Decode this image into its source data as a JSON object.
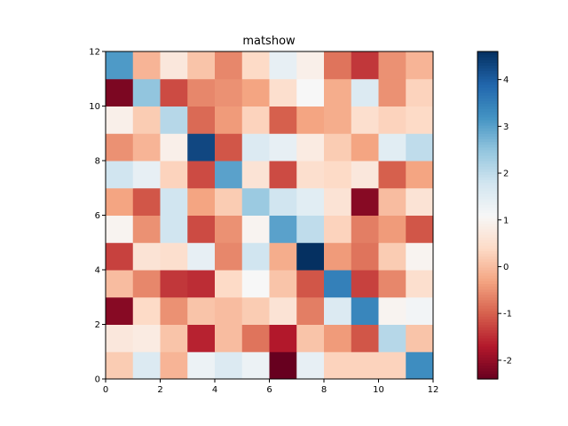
{
  "chart_data": {
    "type": "heatmap",
    "title": "matshow",
    "xlabel": "",
    "ylabel": "",
    "xlim": [
      0,
      12
    ],
    "ylim": [
      0,
      12
    ],
    "x_ticks": [
      "0",
      "2",
      "4",
      "6",
      "8",
      "10",
      "12"
    ],
    "y_ticks": [
      "0",
      "2",
      "4",
      "6",
      "8",
      "10",
      "12"
    ],
    "colormap": "RdBu",
    "colorbar": {
      "vmin": -2.4,
      "vmax": 4.6,
      "ticks": [
        -2,
        -1,
        0,
        1,
        2,
        3,
        4
      ],
      "tick_labels": [
        "-2",
        "-1",
        "0",
        "1",
        "2",
        "3",
        "4"
      ]
    },
    "grid": false,
    "rows_bottom_to_top": [
      [
        0.2,
        1.6,
        -0.1,
        1.3,
        1.6,
        1.3,
        -2.4,
        1.4,
        0.3,
        0.3,
        0.3,
        3.3
      ],
      [
        0.7,
        0.8,
        0.1,
        -1.6,
        0.0,
        -0.8,
        -1.7,
        0.1,
        -0.4,
        -1.1,
        2.1,
        0.1
      ],
      [
        -2.1,
        0.4,
        -0.5,
        0.1,
        0.0,
        0.2,
        0.6,
        -0.7,
        1.6,
        3.4,
        1.0,
        1.2
      ],
      [
        0.0,
        -0.6,
        -1.4,
        -1.5,
        0.4,
        1.1,
        0.1,
        -1.1,
        3.5,
        -1.3,
        -0.6,
        0.5
      ],
      [
        -1.3,
        0.6,
        0.5,
        1.4,
        -0.6,
        1.8,
        -0.2,
        4.6,
        -0.4,
        -0.8,
        0.2,
        1.0
      ],
      [
        1.0,
        -0.5,
        1.8,
        -1.2,
        -0.5,
        1.0,
        3.0,
        2.0,
        0.3,
        -0.7,
        -0.4,
        -1.1
      ],
      [
        -0.3,
        -1.1,
        1.8,
        -0.3,
        0.2,
        2.4,
        1.8,
        1.5,
        0.6,
        -2.1,
        0.0,
        0.6
      ],
      [
        1.8,
        1.4,
        0.3,
        -1.2,
        3.0,
        0.6,
        -1.2,
        0.5,
        0.4,
        0.7,
        -1.0,
        -0.3
      ],
      [
        -0.5,
        -0.1,
        0.9,
        4.3,
        -1.1,
        1.6,
        1.4,
        0.8,
        0.2,
        -0.3,
        1.5,
        2.0
      ],
      [
        0.9,
        0.2,
        2.1,
        -0.9,
        -0.4,
        0.3,
        -1.0,
        -0.3,
        -0.2,
        0.5,
        0.3,
        0.4
      ],
      [
        -2.2,
        2.5,
        -1.2,
        -0.6,
        -0.5,
        -0.3,
        0.5,
        1.1,
        -0.2,
        1.6,
        -0.5,
        0.3
      ],
      [
        3.1,
        -0.1,
        0.7,
        0.1,
        -0.6,
        0.4,
        1.4,
        0.9,
        -0.8,
        -1.4,
        -0.5,
        -0.1
      ]
    ]
  }
}
